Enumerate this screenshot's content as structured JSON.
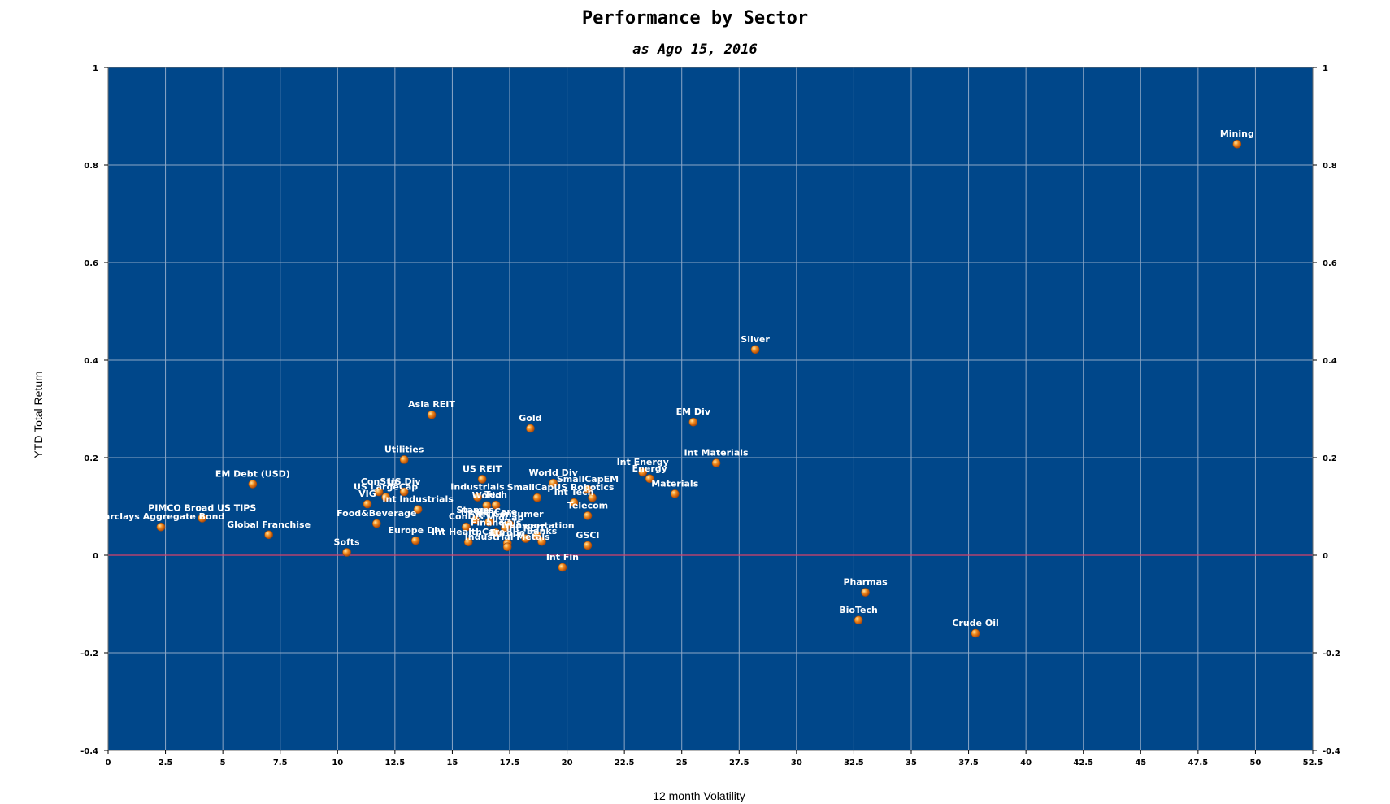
{
  "chart_data": {
    "type": "scatter",
    "title": "Performance by Sector",
    "subtitle": "as Ago 15, 2016",
    "xlabel": "12 month Volatility",
    "ylabel": "YTD Total Return",
    "xlim": [
      0,
      52.5
    ],
    "ylim": [
      -0.4,
      1
    ],
    "xticks": [
      "0",
      "2.5",
      "5",
      "7.5",
      "10",
      "12.5",
      "15",
      "17.5",
      "20",
      "22.5",
      "25",
      "27.5",
      "30",
      "32.5",
      "35",
      "37.5",
      "40",
      "42.5",
      "45",
      "47.5",
      "50",
      "52.5"
    ],
    "yticks": [
      "-0.4",
      "-0.2",
      "0",
      "0.2",
      "0.4",
      "0.6",
      "0.8",
      "1"
    ],
    "grid": true,
    "colors": {
      "plot_bg": "#00478a",
      "grid": "#8da7c6",
      "zero_line": "#d6416b",
      "marker": "#ee7711",
      "marker_edge": "#a34a08",
      "label": "#ffffff"
    },
    "points": [
      {
        "label": "Mining",
        "x": 49.2,
        "y": 0.843
      },
      {
        "label": "Silver",
        "x": 28.2,
        "y": 0.422
      },
      {
        "label": "EM Div",
        "x": 25.5,
        "y": 0.273
      },
      {
        "label": "Asia REIT",
        "x": 14.1,
        "y": 0.288
      },
      {
        "label": "Gold",
        "x": 18.4,
        "y": 0.26
      },
      {
        "label": "Int Materials",
        "x": 26.5,
        "y": 0.189
      },
      {
        "label": "Int Energy",
        "x": 23.3,
        "y": 0.17
      },
      {
        "label": "Energy",
        "x": 23.6,
        "y": 0.157
      },
      {
        "label": "Utilities",
        "x": 12.9,
        "y": 0.196
      },
      {
        "label": "EM Debt (USD)",
        "x": 6.3,
        "y": 0.146
      },
      {
        "label": "US REIT",
        "x": 16.3,
        "y": 0.156
      },
      {
        "label": "World Div",
        "x": 19.4,
        "y": 0.148
      },
      {
        "label": "SmallCapEM",
        "x": 20.9,
        "y": 0.135
      },
      {
        "label": "Materials",
        "x": 24.7,
        "y": 0.126
      },
      {
        "label": "Robotics",
        "x": 21.1,
        "y": 0.118
      },
      {
        "label": "US Div",
        "x": 12.9,
        "y": 0.13
      },
      {
        "label": "ConStp",
        "x": 11.8,
        "y": 0.13
      },
      {
        "label": "SmallCapUS",
        "x": 18.7,
        "y": 0.118
      },
      {
        "label": "Industrials",
        "x": 16.1,
        "y": 0.119
      },
      {
        "label": "Int Tech",
        "x": 20.3,
        "y": 0.108
      },
      {
        "label": "Tech",
        "x": 16.9,
        "y": 0.103
      },
      {
        "label": "World",
        "x": 16.5,
        "y": 0.102
      },
      {
        "label": "VIG",
        "x": 11.3,
        "y": 0.105
      },
      {
        "label": "Int Industrials",
        "x": 13.5,
        "y": 0.094
      },
      {
        "label": "US LargeCap",
        "x": 12.1,
        "y": 0.119
      },
      {
        "label": "Telecom",
        "x": 20.9,
        "y": 0.081
      },
      {
        "label": "Food&Beverage",
        "x": 11.7,
        "y": 0.065
      },
      {
        "label": "PIMCO Broad US TIPS",
        "x": 4.1,
        "y": 0.076
      },
      {
        "label": "Barclays Aggregate Bond",
        "x": 2.3,
        "y": 0.058
      },
      {
        "label": "Global Franchise",
        "x": 7.0,
        "y": 0.042
      },
      {
        "label": "ConDis",
        "x": 15.6,
        "y": 0.058
      },
      {
        "label": "Stamps",
        "x": 16.0,
        "y": 0.072
      },
      {
        "label": "HealthCare",
        "x": 16.6,
        "y": 0.068
      },
      {
        "label": "Int Consumer",
        "x": 17.5,
        "y": 0.063
      },
      {
        "label": "MidCap",
        "x": 17.3,
        "y": 0.056
      },
      {
        "label": "Financials",
        "x": 16.9,
        "y": 0.046
      },
      {
        "label": "Transportation",
        "x": 18.7,
        "y": 0.04
      },
      {
        "label": "Int REIT",
        "x": 18.2,
        "y": 0.034
      },
      {
        "label": "Europe Div",
        "x": 13.4,
        "y": 0.03
      },
      {
        "label": "Int HealthCare",
        "x": 15.7,
        "y": 0.027
      },
      {
        "label": "Europe",
        "x": 17.4,
        "y": 0.025
      },
      {
        "label": "Banks",
        "x": 18.9,
        "y": 0.028
      },
      {
        "label": "GSCI",
        "x": 20.9,
        "y": 0.02
      },
      {
        "label": "Industrial Metals",
        "x": 17.4,
        "y": 0.017
      },
      {
        "label": "Softs",
        "x": 10.4,
        "y": 0.006
      },
      {
        "label": "Int Fin",
        "x": 19.8,
        "y": -0.025
      },
      {
        "label": "Pharmas",
        "x": 33.0,
        "y": -0.076
      },
      {
        "label": "BioTech",
        "x": 32.7,
        "y": -0.133
      },
      {
        "label": "Crude Oil",
        "x": 37.8,
        "y": -0.16
      }
    ]
  }
}
